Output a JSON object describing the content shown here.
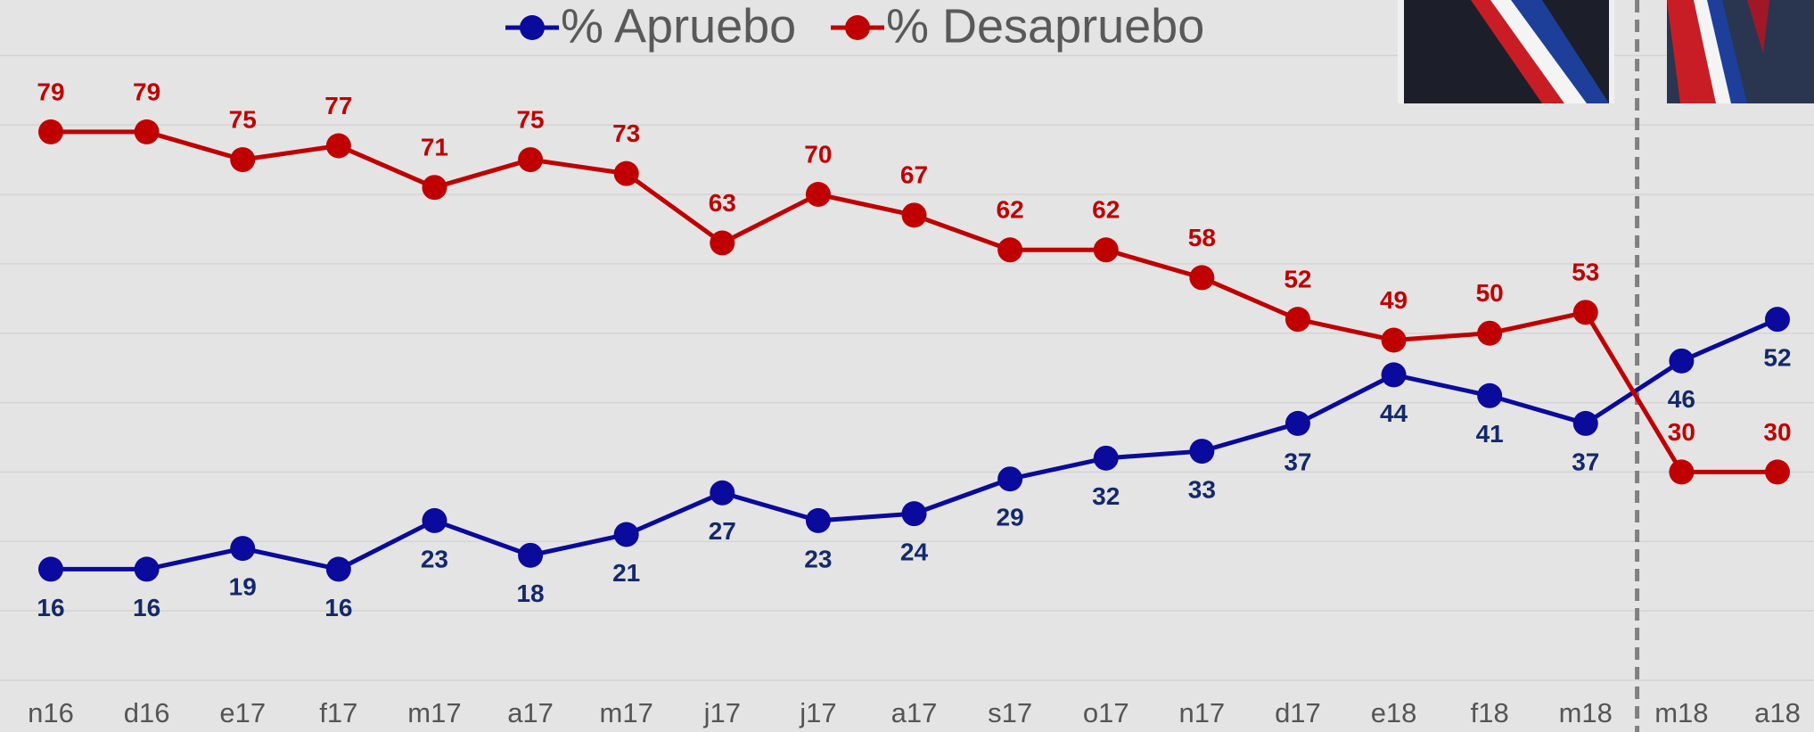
{
  "chart_data": {
    "type": "line",
    "categories": [
      "n16",
      "d16",
      "e17",
      "f17",
      "m17",
      "a17",
      "m17",
      "j17",
      "j17",
      "a17",
      "s17",
      "o17",
      "n17",
      "d17",
      "e18",
      "f18",
      "m18",
      "m18",
      "a18"
    ],
    "series": [
      {
        "name": "% Apruebo",
        "color": "#0a0a9c",
        "label_color": "#13296b",
        "values": [
          16,
          16,
          19,
          16,
          23,
          18,
          21,
          27,
          23,
          24,
          29,
          32,
          33,
          37,
          44,
          41,
          37,
          46,
          52
        ]
      },
      {
        "name": "% Desapruebo",
        "color": "#c00000",
        "label_color": "#c00000",
        "values": [
          79,
          79,
          75,
          77,
          71,
          75,
          73,
          63,
          70,
          67,
          62,
          62,
          58,
          52,
          49,
          50,
          53,
          30,
          30
        ]
      }
    ],
    "ylim": [
      0,
      98
    ],
    "yticks": [
      0,
      10,
      20,
      30,
      40,
      50,
      60,
      70,
      80,
      90
    ],
    "grid": true
  }
}
